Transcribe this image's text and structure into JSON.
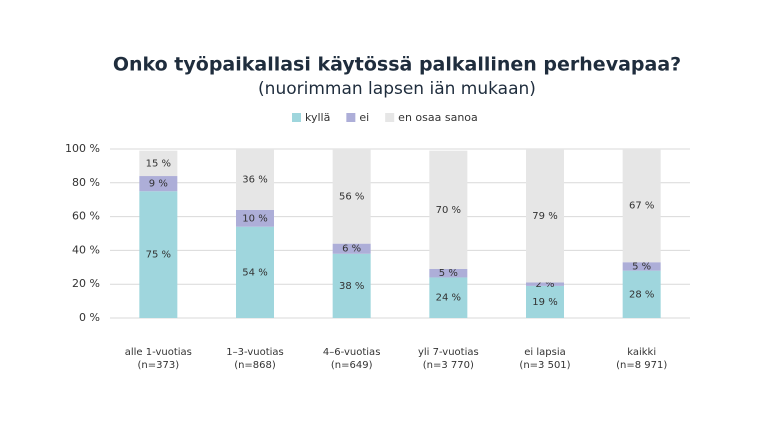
{
  "chart_data": {
    "type": "stacked_bar",
    "title": "Onko työpaikallasi käytössä palkallinen perhevapaa?",
    "subtitle": "(nuorimman lapsen iän mukaan)",
    "categories": [
      [
        "alle 1-vuotias",
        "(n=373)"
      ],
      [
        "1–3-vuotias",
        "(n=868)"
      ],
      [
        "4–6-vuotias",
        "(n=649)"
      ],
      [
        "yli 7-vuotias",
        "(n=3 770)"
      ],
      [
        "ei lapsia",
        "(n=3 501)"
      ],
      [
        "kaikki",
        "(n=8 971)"
      ]
    ],
    "series": [
      {
        "name": "kyllä",
        "color": "#9fd6dd",
        "values": [
          75,
          54,
          38,
          24,
          19,
          28
        ],
        "value_labels": [
          "75 %",
          "54 %",
          "38 %",
          "24 %",
          "19 %",
          "28 %"
        ]
      },
      {
        "name": "ei",
        "color": "#adaed8",
        "values": [
          9,
          10,
          6,
          5,
          2,
          5
        ],
        "value_labels": [
          "9 %",
          "10 %",
          "6 %",
          "5 %",
          "2 %",
          "5 %"
        ]
      },
      {
        "name": "en osaa sanoa",
        "color": "#e6e6e6",
        "values": [
          15,
          36,
          56,
          70,
          79,
          67
        ],
        "value_labels": [
          "15 %",
          "36 %",
          "56 %",
          "70 %",
          "79 %",
          "67 %"
        ]
      }
    ],
    "ylim": [
      0,
      100
    ],
    "yticks": [
      {
        "value": 0,
        "label": "0 %"
      },
      {
        "value": 20,
        "label": "20 %"
      },
      {
        "value": 40,
        "label": "40 %"
      },
      {
        "value": 60,
        "label": "60 %"
      },
      {
        "value": 80,
        "label": "80 %"
      },
      {
        "value": 100,
        "label": "100 %"
      }
    ],
    "grid": true
  }
}
